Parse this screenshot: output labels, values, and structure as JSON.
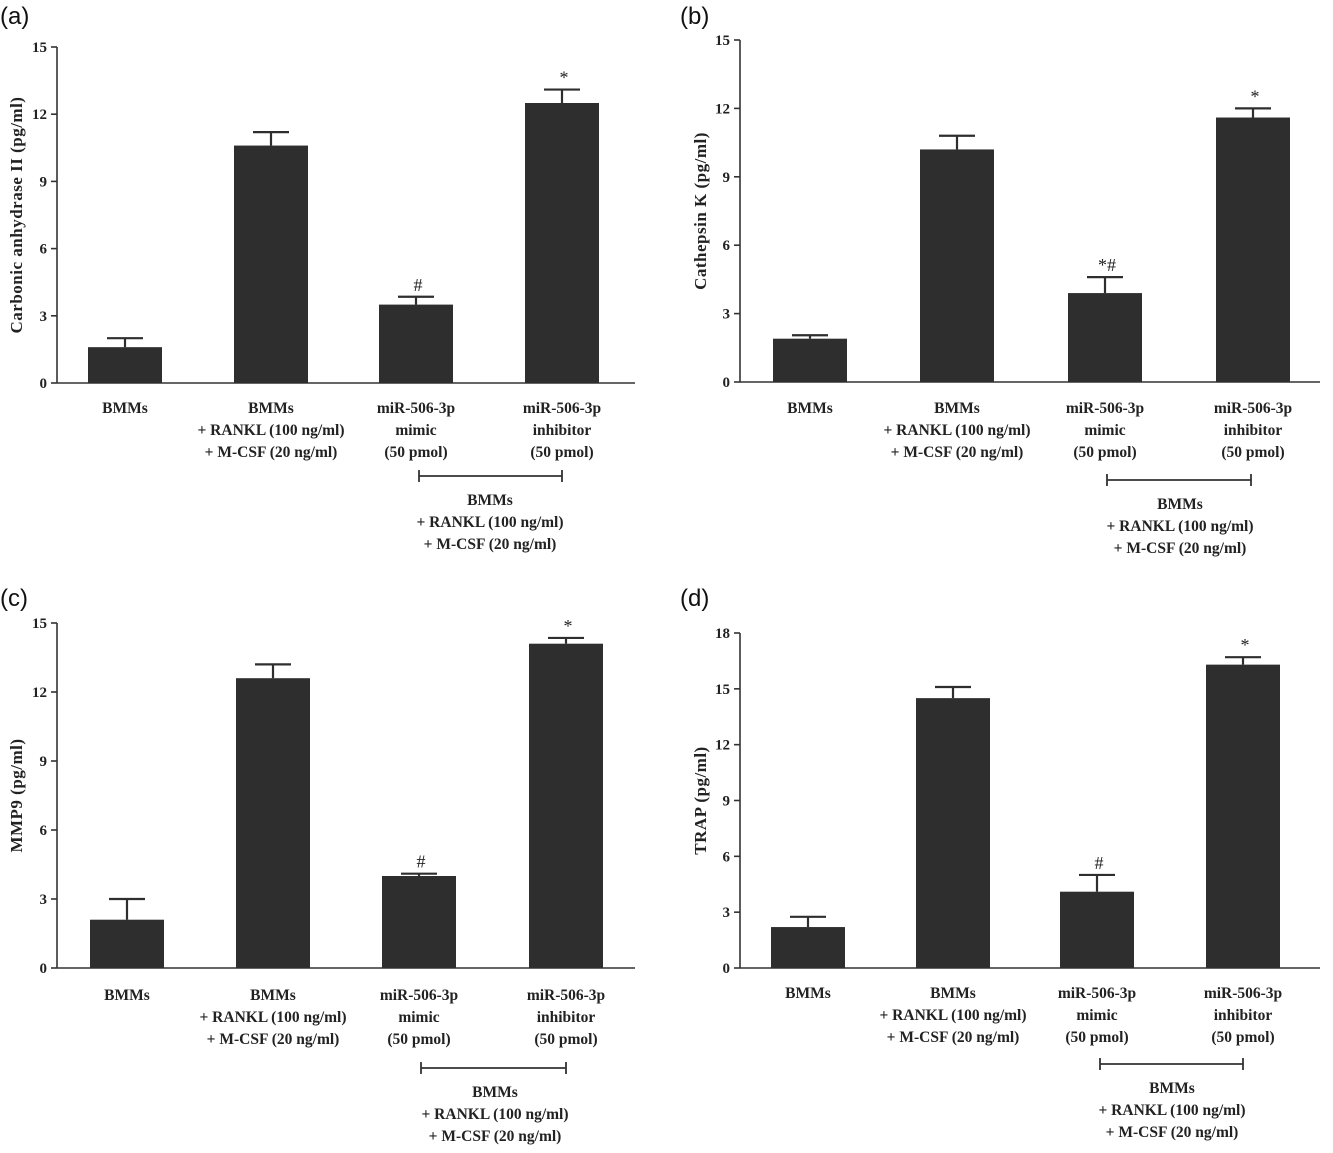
{
  "colors": {
    "bar": "#2e2e2e",
    "axis": "#333333",
    "background": "#ffffff"
  },
  "chart_data": [
    {
      "type": "bar",
      "panel": "(a)",
      "ylabel": "Carbonic anhydrase II (pg/ml)",
      "ylim": [
        0,
        15
      ],
      "yticks": [
        0,
        3,
        6,
        9,
        12,
        15
      ],
      "categories": [
        [
          "BMMs"
        ],
        [
          "BMMs",
          "+ RANKL (100 ng/ml)",
          "+ M-CSF (20 ng/ml)"
        ],
        [
          "miR-506-3p",
          "mimic",
          "(50 pmol)"
        ],
        [
          "miR-506-3p",
          "inhibitor",
          "(50 pmol)"
        ]
      ],
      "values": [
        1.6,
        10.6,
        3.5,
        12.5
      ],
      "errors": [
        0.4,
        0.6,
        0.35,
        0.6
      ],
      "significance": [
        "",
        "",
        "#",
        "*"
      ],
      "group_label": [
        "BMMs",
        "+ RANKL (100 ng/ml)",
        "+ M-CSF (20 ng/ml)"
      ],
      "grid": false
    },
    {
      "type": "bar",
      "panel": "(b)",
      "ylabel": "Cathepsin K (pg/ml)",
      "ylim": [
        0,
        15
      ],
      "yticks": [
        0,
        3,
        6,
        9,
        12,
        15
      ],
      "categories": [
        [
          "BMMs"
        ],
        [
          "BMMs",
          "+ RANKL (100 ng/ml)",
          "+ M-CSF (20 ng/ml)"
        ],
        [
          "miR-506-3p",
          "mimic",
          "(50 pmol)"
        ],
        [
          "miR-506-3p",
          "inhibitor",
          "(50 pmol)"
        ]
      ],
      "values": [
        1.9,
        10.2,
        3.9,
        11.6
      ],
      "errors": [
        0.15,
        0.6,
        0.7,
        0.4
      ],
      "significance": [
        "",
        "",
        "*#",
        "*"
      ],
      "group_label": [
        "BMMs",
        "+ RANKL (100 ng/ml)",
        "+ M-CSF (20 ng/ml)"
      ],
      "grid": false
    },
    {
      "type": "bar",
      "panel": "(c)",
      "ylabel": "MMP9 (pg/ml)",
      "ylim": [
        0,
        15
      ],
      "yticks": [
        0,
        3,
        6,
        9,
        12,
        15
      ],
      "categories": [
        [
          "BMMs"
        ],
        [
          "BMMs",
          "+ RANKL (100 ng/ml)",
          "+ M-CSF (20 ng/ml)"
        ],
        [
          "miR-506-3p",
          "mimic",
          "(50 pmol)"
        ],
        [
          "miR-506-3p",
          "inhibitor",
          "(50 pmol)"
        ]
      ],
      "values": [
        2.1,
        12.6,
        4.0,
        14.1
      ],
      "errors": [
        0.9,
        0.6,
        0.1,
        0.25
      ],
      "significance": [
        "",
        "",
        "#",
        "*"
      ],
      "group_label": [
        "BMMs",
        "+ RANKL (100 ng/ml)",
        "+ M-CSF (20 ng/ml)"
      ],
      "grid": false
    },
    {
      "type": "bar",
      "panel": "(d)",
      "ylabel": "TRAP (pg/ml)",
      "ylim": [
        0,
        18
      ],
      "yticks": [
        0,
        3,
        6,
        9,
        12,
        15,
        18
      ],
      "categories": [
        [
          "BMMs"
        ],
        [
          "BMMs",
          "+ RANKL (100 ng/ml)",
          "+ M-CSF (20 ng/ml)"
        ],
        [
          "miR-506-3p",
          "mimic",
          "(50 pmol)"
        ],
        [
          "miR-506-3p",
          "inhibitor",
          "(50 pmol)"
        ]
      ],
      "values": [
        2.2,
        14.5,
        4.1,
        16.3
      ],
      "errors": [
        0.55,
        0.6,
        0.9,
        0.4
      ],
      "significance": [
        "",
        "",
        "#",
        "*"
      ],
      "group_label": [
        "BMMs",
        "+ RANKL (100 ng/ml)",
        "+ M-CSF (20 ng/ml)"
      ],
      "grid": false
    }
  ]
}
